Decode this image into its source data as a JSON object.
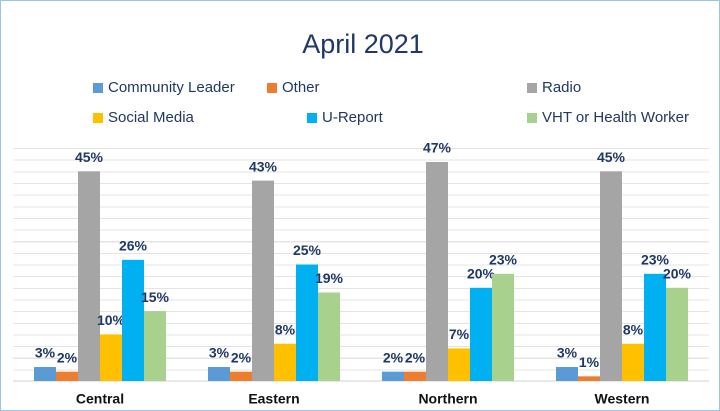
{
  "chart_data": {
    "type": "bar",
    "title": "April 2021",
    "categories": [
      "Central",
      "Eastern",
      "Northern",
      "Western"
    ],
    "ylim": [
      0,
      50
    ],
    "series": [
      {
        "name": "Community Leader",
        "color": "#5b9bd5",
        "values": [
          3,
          3,
          2,
          3
        ],
        "value_labels": [
          "3%",
          "3%",
          "2%",
          "3%"
        ]
      },
      {
        "name": "Other",
        "color": "#ed7d31",
        "values": [
          2,
          2,
          2,
          1
        ],
        "value_labels": [
          "2%",
          "2%",
          "2%",
          "1%"
        ]
      },
      {
        "name": "Radio",
        "color": "#a5a5a5",
        "values": [
          45,
          43,
          47,
          45
        ],
        "value_labels": [
          "45%",
          "43%",
          "47%",
          "45%"
        ]
      },
      {
        "name": "Social Media",
        "color": "#ffc000",
        "values": [
          10,
          8,
          7,
          8
        ],
        "value_labels": [
          "10%",
          "8%",
          "7%",
          "8%"
        ]
      },
      {
        "name": "U-Report",
        "color": "#00b0f0",
        "values": [
          26,
          25,
          20,
          23
        ],
        "value_labels": [
          "26%",
          "25%",
          "20%",
          "23%"
        ]
      },
      {
        "name": "VHT or Health Worker",
        "color": "#a9d18e",
        "values": [
          15,
          19,
          23,
          20
        ],
        "value_labels": [
          "15%",
          "19%",
          "23%",
          "20%"
        ]
      }
    ]
  }
}
